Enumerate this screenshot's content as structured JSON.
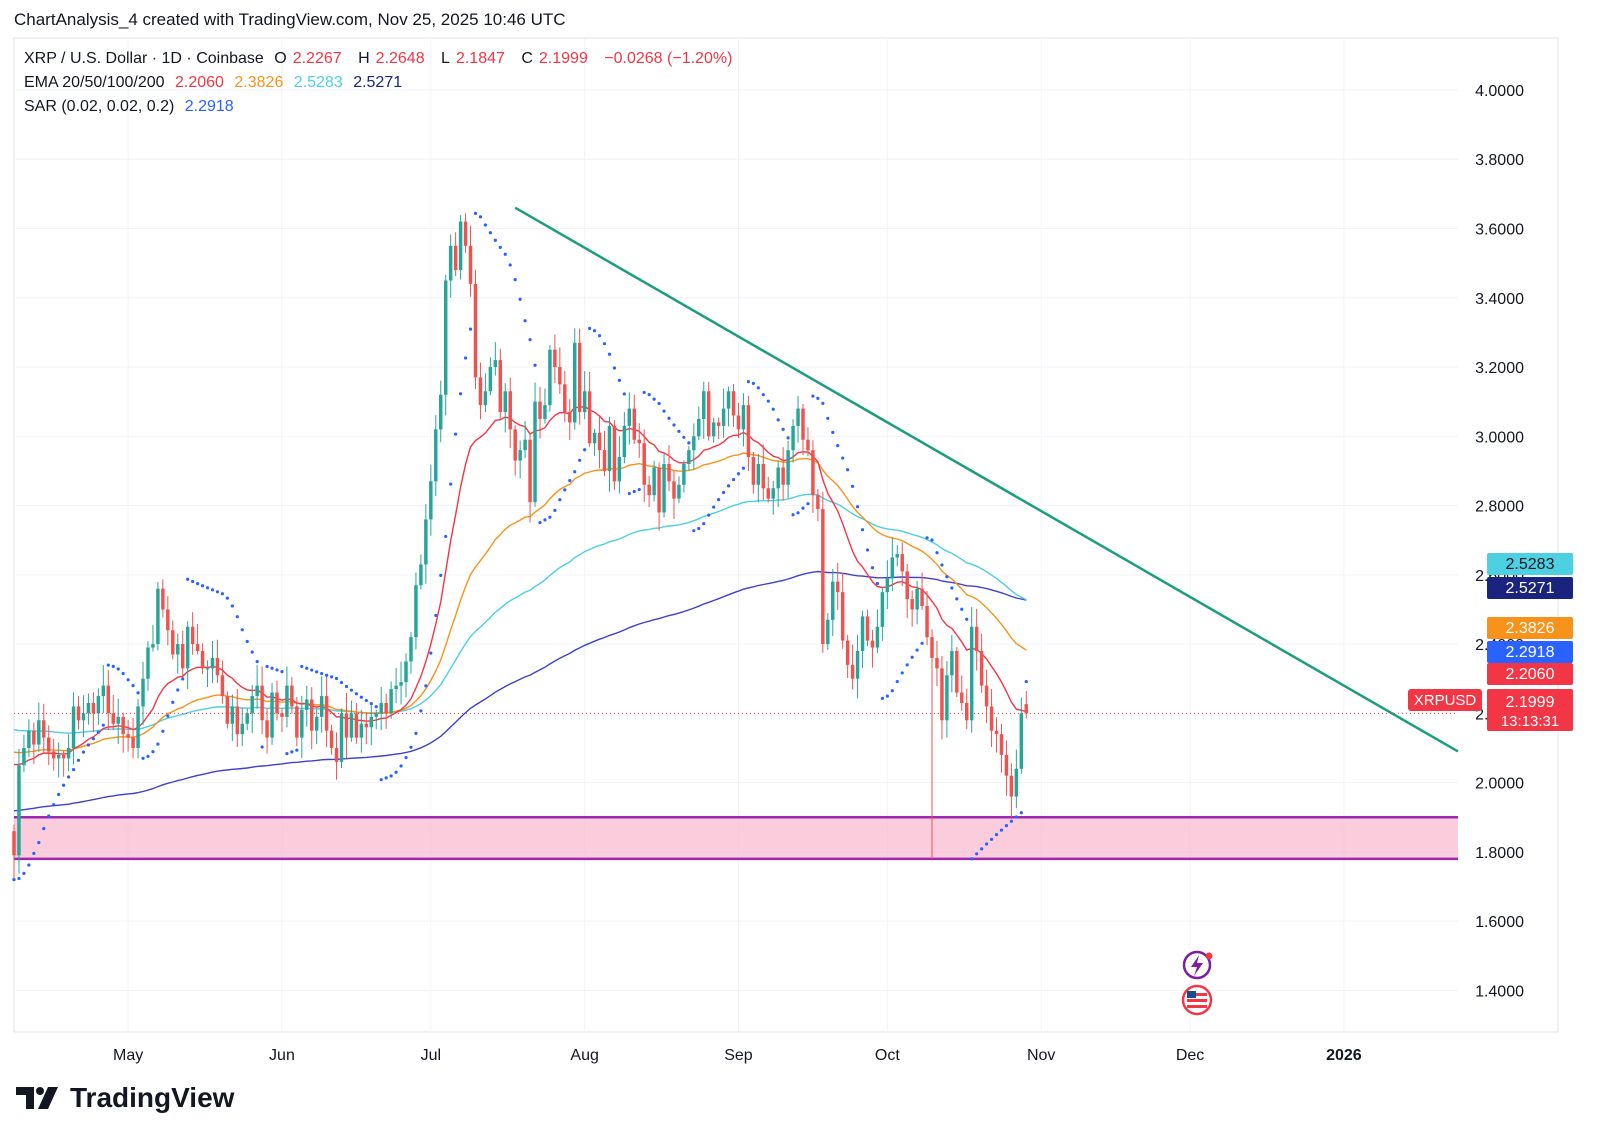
{
  "header": {
    "credit": "ChartAnalysis_4 created with TradingView.com, Nov 25, 2025 10:46 UTC"
  },
  "legend": {
    "symbol": "XRP / U.S. Dollar · 1D · Coinbase",
    "o_label": "O",
    "o_value": "2.2267",
    "h_label": "H",
    "h_value": "2.2648",
    "l_label": "L",
    "l_value": "2.1847",
    "c_label": "C",
    "c_value": "2.1999",
    "change": "−0.0268 (−1.20%)",
    "ema_label": "EMA 20/50/100/200",
    "ema20": "2.2060",
    "ema50": "2.3826",
    "ema100": "2.5283",
    "ema200": "2.5271",
    "sar_label": "SAR (0.02, 0.02, 0.2)",
    "sar_value": "2.2918"
  },
  "brand": {
    "name": "TradingView"
  },
  "colors": {
    "up": "#26a69a",
    "down": "#ef5350",
    "ema20": "#f23645",
    "ema50": "#f7931a",
    "ema100": "#4dd0e1",
    "ema200": "#3f3fd1",
    "sar": "#2962ff",
    "trendline": "#1a9e7e",
    "support_zone": "#f8bbd0",
    "support_border": "#9c27b0"
  },
  "chart_data": {
    "type": "candlestick",
    "symbol": "XRPUSD",
    "ylim": [
      1.28,
      4.15
    ],
    "y_ticks": [
      "4.0000",
      "3.8000",
      "3.6000",
      "3.4000",
      "3.2000",
      "3.0000",
      "2.8000",
      "2.6000",
      "2.4000",
      "2.2000",
      "2.0000",
      "1.8000",
      "1.6000",
      "1.4000"
    ],
    "x_range": [
      "2025-04-08",
      "2026-01-24"
    ],
    "x_ticks": [
      {
        "date": "2025-05-01",
        "label": "May"
      },
      {
        "date": "2025-06-01",
        "label": "Jun"
      },
      {
        "date": "2025-07-01",
        "label": "Jul"
      },
      {
        "date": "2025-08-01",
        "label": "Aug"
      },
      {
        "date": "2025-09-01",
        "label": "Sep"
      },
      {
        "date": "2025-10-01",
        "label": "Oct"
      },
      {
        "date": "2025-11-01",
        "label": "Nov"
      },
      {
        "date": "2025-12-01",
        "label": "Dec"
      },
      {
        "date": "2026-01-01",
        "label": "2026"
      }
    ],
    "start_date": "2025-04-08",
    "closes": [
      1.79,
      2.05,
      2.1,
      2.15,
      2.11,
      2.18,
      2.13,
      2.09,
      2.07,
      2.08,
      2.07,
      2.1,
      2.22,
      2.18,
      2.2,
      2.23,
      2.2,
      2.25,
      2.28,
      2.2,
      2.17,
      2.19,
      2.14,
      2.13,
      2.1,
      2.22,
      2.3,
      2.39,
      2.4,
      2.56,
      2.5,
      2.44,
      2.37,
      2.4,
      2.33,
      2.45,
      2.4,
      2.38,
      2.33,
      2.33,
      2.36,
      2.31,
      2.25,
      2.17,
      2.22,
      2.14,
      2.17,
      2.2,
      2.25,
      2.28,
      2.18,
      2.13,
      2.26,
      2.2,
      2.19,
      2.28,
      2.22,
      2.13,
      2.21,
      2.24,
      2.15,
      2.19,
      2.25,
      2.15,
      2.1,
      2.06,
      2.2,
      2.13,
      2.2,
      2.13,
      2.17,
      2.16,
      2.19,
      2.2,
      2.23,
      2.2,
      2.27,
      2.28,
      2.29,
      2.35,
      2.42,
      2.57,
      2.63,
      2.76,
      2.87,
      3.02,
      3.12,
      3.45,
      3.55,
      3.48,
      3.62,
      3.55,
      3.44,
      3.17,
      3.09,
      3.13,
      3.2,
      3.22,
      3.07,
      3.13,
      3.02,
      2.93,
      2.96,
      2.99,
      2.81,
      3.1,
      3.05,
      3.09,
      3.25,
      3.2,
      3.15,
      3.07,
      3.04,
      3.27,
      3.07,
      3.13,
      2.98,
      3.01,
      2.96,
      2.9,
      3.03,
      2.87,
      2.94,
      3.03,
      3.08,
      2.99,
      2.98,
      2.86,
      2.83,
      2.91,
      2.78,
      2.92,
      2.87,
      2.82,
      2.86,
      2.92,
      2.96,
      3.0,
      3.05,
      3.13,
      3.0,
      3.04,
      3.03,
      3.08,
      3.13,
      3.06,
      3.02,
      3.09,
      2.94,
      2.86,
      2.92,
      2.85,
      2.82,
      2.85,
      2.91,
      2.86,
      2.96,
      3.03,
      3.08,
      2.99,
      2.96,
      2.83,
      2.79,
      2.4,
      2.47,
      2.58,
      2.55,
      2.41,
      2.34,
      2.3,
      2.38,
      2.48,
      2.41,
      2.39,
      2.45,
      2.55,
      2.59,
      2.65,
      2.66,
      2.61,
      2.53,
      2.5,
      2.56,
      2.51,
      2.42,
      2.36,
      2.33,
      2.18,
      2.31,
      2.38,
      2.26,
      2.23,
      2.18,
      2.45,
      2.38,
      2.28,
      2.22,
      2.15,
      2.14,
      2.08,
      2.02,
      1.96,
      2.04,
      2.2,
      2.22
    ],
    "ohlc_last": {
      "open": 2.2267,
      "high": 2.2648,
      "low": 2.1847,
      "close": 2.1999
    },
    "ema20_last": 2.206,
    "ema50_last": 2.3826,
    "ema100_last": 2.5283,
    "ema200_last": 2.5271,
    "sar_last": 2.2918,
    "current_price_label": "2.1999",
    "countdown": "13:13:31",
    "trendline": {
      "start": {
        "date": "2025-07-18",
        "price": 3.66
      },
      "end": {
        "date": "2026-01-24",
        "price": 2.09
      }
    },
    "support_zone": {
      "low": 1.78,
      "high": 1.9
    },
    "wicks": [
      {
        "date": "2025-10-10",
        "low": 1.78
      },
      {
        "date": "2025-11-21",
        "low": 1.82
      }
    ],
    "price_badges": [
      {
        "value": "2.5283",
        "color": "#4dd0e1",
        "text_color": "#131722"
      },
      {
        "value": "2.5271",
        "color": "#1a237e",
        "text_color": "#ffffff"
      },
      {
        "value": "2.3826",
        "color": "#f7931a",
        "text_color": "#ffffff"
      },
      {
        "value": "2.2918",
        "color": "#2962ff",
        "text_color": "#ffffff"
      },
      {
        "value": "2.2060",
        "color": "#f23645",
        "text_color": "#ffffff"
      }
    ]
  }
}
